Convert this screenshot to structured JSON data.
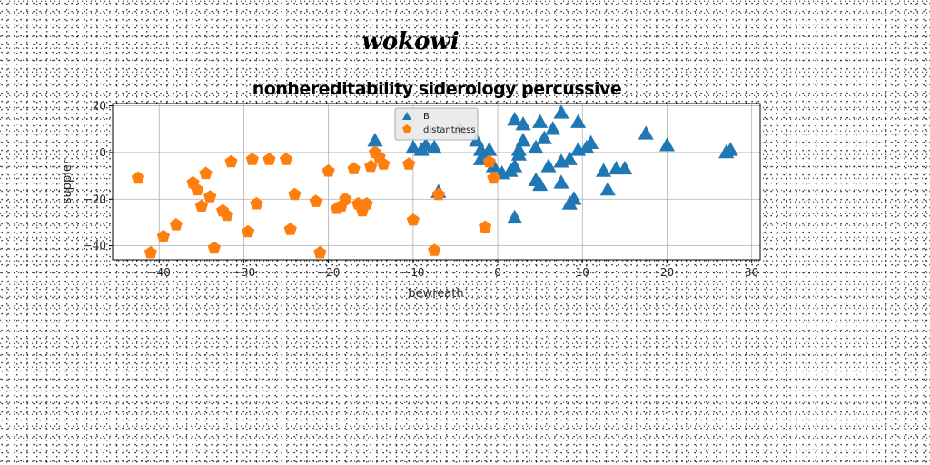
{
  "chart_data": {
    "type": "scatter",
    "suptitle": "wokowi",
    "title": "nonhereditability siderology percussive",
    "xlabel": "bewreath",
    "ylabel": "suppler",
    "xlim": [
      -45.5,
      31
    ],
    "ylim": [
      -46,
      21
    ],
    "xticks": [
      -40,
      -30,
      -20,
      -10,
      0,
      10,
      20,
      30
    ],
    "yticks": [
      -40,
      -20,
      0,
      20
    ],
    "xtick_labels": [
      "−40",
      "−30",
      "−20",
      "−10",
      "0",
      "10",
      "20",
      "30"
    ],
    "ytick_labels": [
      "−40",
      "−20",
      "0",
      "20"
    ],
    "grid": true,
    "legend_position": "top-center",
    "series": [
      {
        "name": "B",
        "marker": "triangle",
        "color": "#1f77b4",
        "points": [
          [
            -14.5,
            5
          ],
          [
            -10,
            2
          ],
          [
            -9,
            1
          ],
          [
            -8.5,
            3
          ],
          [
            -7.5,
            2
          ],
          [
            -7,
            -17
          ],
          [
            -4.5,
            10
          ],
          [
            -2.5,
            5
          ],
          [
            -2,
            -3
          ],
          [
            -2,
            1
          ],
          [
            -1.5,
            -2
          ],
          [
            -1,
            1
          ],
          [
            -0.5,
            -6
          ],
          [
            0.5,
            -9
          ],
          [
            1.5,
            -8
          ],
          [
            2,
            -28
          ],
          [
            2,
            14
          ],
          [
            2,
            -6
          ],
          [
            2.5,
            -1
          ],
          [
            2.5,
            1
          ],
          [
            3,
            5
          ],
          [
            3,
            12
          ],
          [
            4.5,
            2
          ],
          [
            4.5,
            -12
          ],
          [
            5,
            -14
          ],
          [
            5,
            13
          ],
          [
            5.5,
            6
          ],
          [
            6,
            -6
          ],
          [
            6.5,
            10
          ],
          [
            7.5,
            -13
          ],
          [
            7.5,
            -4
          ],
          [
            7.5,
            17
          ],
          [
            8.5,
            -22
          ],
          [
            8.5,
            -3
          ],
          [
            9,
            -20
          ],
          [
            9.5,
            1
          ],
          [
            9.5,
            13
          ],
          [
            10.5,
            2
          ],
          [
            11,
            4
          ],
          [
            12.5,
            -8
          ],
          [
            13,
            -16
          ],
          [
            14,
            -7
          ],
          [
            15,
            -7
          ],
          [
            17.5,
            8
          ],
          [
            20,
            3
          ],
          [
            27,
            0
          ],
          [
            27.5,
            1
          ]
        ]
      },
      {
        "name": "distantness",
        "marker": "pentagon",
        "color": "#ff7f0e",
        "points": [
          [
            -42.5,
            -11
          ],
          [
            -41,
            -43
          ],
          [
            -39.5,
            -36
          ],
          [
            -38,
            -31
          ],
          [
            -36,
            -13
          ],
          [
            -35.5,
            -16
          ],
          [
            -35,
            -23
          ],
          [
            -34.5,
            -9
          ],
          [
            -34,
            -19
          ],
          [
            -33.5,
            -41
          ],
          [
            -32.5,
            -25
          ],
          [
            -32,
            -27
          ],
          [
            -31.5,
            -4
          ],
          [
            -29.5,
            -34
          ],
          [
            -29,
            -3
          ],
          [
            -28.5,
            -22
          ],
          [
            -27,
            -3
          ],
          [
            -25,
            -3
          ],
          [
            -24.5,
            -33
          ],
          [
            -24,
            -18
          ],
          [
            -21.5,
            -21
          ],
          [
            -21,
            -43
          ],
          [
            -20,
            -8
          ],
          [
            -19,
            -24
          ],
          [
            -18.5,
            -23
          ],
          [
            -18,
            -20
          ],
          [
            -17,
            -7
          ],
          [
            -16.5,
            -22
          ],
          [
            -16,
            -25
          ],
          [
            -15.5,
            -22
          ],
          [
            -15,
            -6
          ],
          [
            -14.5,
            0
          ],
          [
            -14,
            -2
          ],
          [
            -13.5,
            -5
          ],
          [
            -10.5,
            -5
          ],
          [
            -10,
            -29
          ],
          [
            -7.5,
            -42
          ],
          [
            -7,
            -18
          ],
          [
            -1.5,
            -32
          ],
          [
            -1,
            -4
          ],
          [
            -0.5,
            -11
          ]
        ]
      }
    ]
  }
}
